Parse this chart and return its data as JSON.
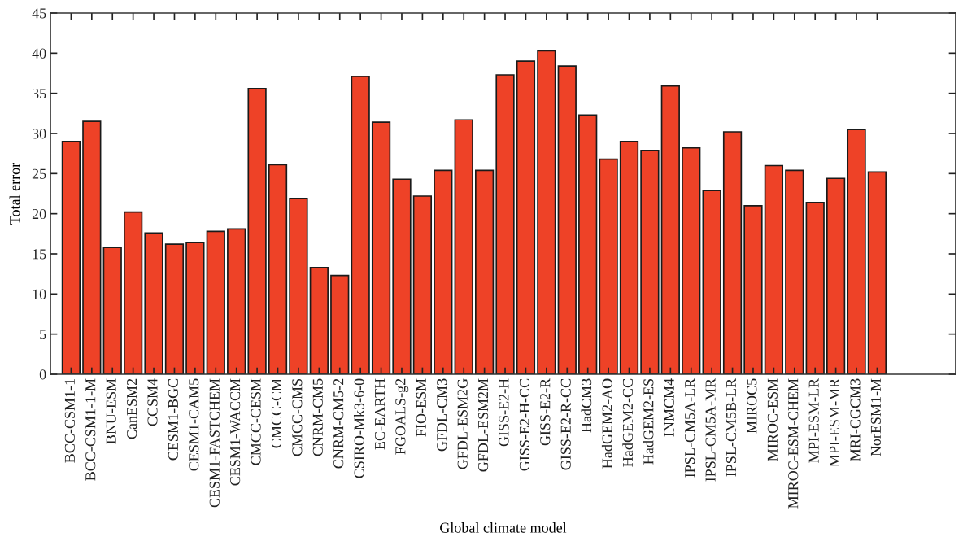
{
  "chart_data": {
    "type": "bar",
    "xlabel": "Global climate model",
    "ylabel": "Total error",
    "categories": [
      "BCC-CSM1-1",
      "BCC-CSM1-1-M",
      "BNU-ESM",
      "CanESM2",
      "CCSM4",
      "CESM1-BGC",
      "CESM1-CAM5",
      "CESM1-FASTCHEM",
      "CESM1-WACCM",
      "CMCC-CESM",
      "CMCC-CM",
      "CMCC-CMS",
      "CNRM-CM5",
      "CNRM-CM5-2",
      "CSIRO-Mk3-6-0",
      "EC-EARTH",
      "FGOALS-g2",
      "FIO-ESM",
      "GFDL-CM3",
      "GFDL-ESM2G",
      "GFDL-ESM2M",
      "GISS-E2-H",
      "GISS-E2-H-CC",
      "GISS-E2-R",
      "GISS-E2-R-CC",
      "HadCM3",
      "HadGEM2-AO",
      "HadGEM2-CC",
      "HadGEM2-ES",
      "INMCM4",
      "IPSL-CM5A-LR",
      "IPSL-CM5A-MR",
      "IPSL-CM5B-LR",
      "MIROC5",
      "MIROC-ESM",
      "MIROC-ESM-CHEM",
      "MPI-ESM-LR",
      "MPI-ESM-MR",
      "MRI-CGCM3",
      "NorESM1-M"
    ],
    "values": [
      29.0,
      31.5,
      15.8,
      20.2,
      17.6,
      16.2,
      16.4,
      17.8,
      18.1,
      35.6,
      26.1,
      21.9,
      13.3,
      12.3,
      37.1,
      31.4,
      24.3,
      22.2,
      25.4,
      31.7,
      25.4,
      37.3,
      39.0,
      40.3,
      38.4,
      32.3,
      26.8,
      29.0,
      27.9,
      35.9,
      28.2,
      22.9,
      30.2,
      21.0,
      26.0,
      25.4,
      21.4,
      24.4,
      30.5,
      25.2
    ],
    "color": "#ee4227",
    "ylim": [
      0,
      45
    ],
    "yticks": [
      0,
      5,
      10,
      15,
      20,
      25,
      30,
      35,
      40,
      45
    ],
    "grid": false,
    "legend": false
  }
}
